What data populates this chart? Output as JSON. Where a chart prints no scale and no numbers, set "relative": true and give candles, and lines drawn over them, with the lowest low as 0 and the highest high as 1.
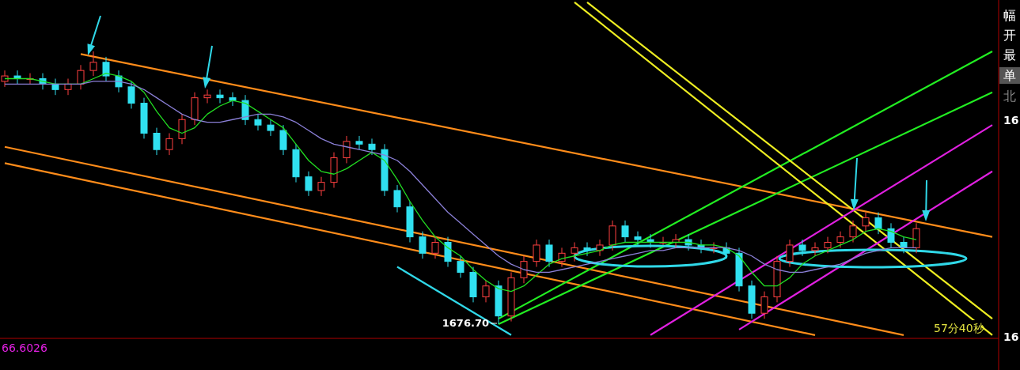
{
  "chart_data": {
    "type": "candlestick",
    "relative": true,
    "categories": [
      null,
      null,
      null,
      null,
      null,
      null,
      null,
      null,
      null,
      null,
      null,
      null,
      null,
      null,
      null,
      null,
      null,
      null,
      null,
      null,
      null,
      null,
      null,
      null,
      null,
      null,
      null,
      null,
      null,
      null,
      null,
      null,
      null,
      null,
      null,
      null,
      null,
      null,
      null,
      null,
      null,
      null,
      null,
      null,
      null,
      null,
      null,
      null,
      null,
      null,
      null,
      null,
      null,
      null,
      null,
      null,
      null,
      null,
      null,
      null,
      null,
      null,
      null,
      null,
      null,
      null,
      null,
      null,
      null,
      null,
      null,
      null,
      null,
      null,
      null,
      null,
      null,
      null,
      null
    ],
    "ohlc": [
      [
        0.89,
        0.93,
        0.87,
        0.91
      ],
      [
        0.91,
        0.93,
        0.88,
        0.9
      ],
      [
        0.9,
        0.92,
        0.88,
        0.9
      ],
      [
        0.9,
        0.92,
        0.86,
        0.88
      ],
      [
        0.88,
        0.9,
        0.84,
        0.86
      ],
      [
        0.86,
        0.9,
        0.84,
        0.88
      ],
      [
        0.88,
        0.95,
        0.86,
        0.93
      ],
      [
        0.93,
        1.0,
        0.91,
        0.96
      ],
      [
        0.96,
        0.98,
        0.89,
        0.91
      ],
      [
        0.91,
        0.93,
        0.85,
        0.87
      ],
      [
        0.87,
        0.89,
        0.79,
        0.81
      ],
      [
        0.81,
        0.83,
        0.68,
        0.7
      ],
      [
        0.7,
        0.72,
        0.62,
        0.64
      ],
      [
        0.64,
        0.7,
        0.62,
        0.68
      ],
      [
        0.68,
        0.77,
        0.66,
        0.75
      ],
      [
        0.75,
        0.85,
        0.73,
        0.83
      ],
      [
        0.83,
        0.86,
        0.81,
        0.84
      ],
      [
        0.84,
        0.86,
        0.81,
        0.83
      ],
      [
        0.83,
        0.85,
        0.8,
        0.82
      ],
      [
        0.82,
        0.84,
        0.73,
        0.75
      ],
      [
        0.75,
        0.77,
        0.71,
        0.73
      ],
      [
        0.73,
        0.75,
        0.69,
        0.71
      ],
      [
        0.71,
        0.73,
        0.62,
        0.64
      ],
      [
        0.64,
        0.66,
        0.52,
        0.54
      ],
      [
        0.54,
        0.56,
        0.47,
        0.49
      ],
      [
        0.49,
        0.54,
        0.47,
        0.52
      ],
      [
        0.52,
        0.63,
        0.5,
        0.61
      ],
      [
        0.61,
        0.69,
        0.59,
        0.67
      ],
      [
        0.67,
        0.69,
        0.64,
        0.66
      ],
      [
        0.66,
        0.68,
        0.62,
        0.64
      ],
      [
        0.64,
        0.66,
        0.47,
        0.49
      ],
      [
        0.49,
        0.51,
        0.41,
        0.43
      ],
      [
        0.43,
        0.45,
        0.3,
        0.32
      ],
      [
        0.32,
        0.34,
        0.24,
        0.26
      ],
      [
        0.26,
        0.32,
        0.24,
        0.3
      ],
      [
        0.3,
        0.32,
        0.21,
        0.23
      ],
      [
        0.23,
        0.25,
        0.17,
        0.19
      ],
      [
        0.19,
        0.21,
        0.08,
        0.1
      ],
      [
        0.1,
        0.16,
        0.08,
        0.14
      ],
      [
        0.14,
        0.16,
        0.0,
        0.03
      ],
      [
        0.03,
        0.19,
        0.01,
        0.17
      ],
      [
        0.17,
        0.25,
        0.15,
        0.23
      ],
      [
        0.23,
        0.31,
        0.21,
        0.29
      ],
      [
        0.29,
        0.31,
        0.21,
        0.23
      ],
      [
        0.23,
        0.28,
        0.21,
        0.26
      ],
      [
        0.26,
        0.3,
        0.23,
        0.28
      ],
      [
        0.28,
        0.3,
        0.25,
        0.27
      ],
      [
        0.27,
        0.31,
        0.25,
        0.29
      ],
      [
        0.29,
        0.38,
        0.27,
        0.36
      ],
      [
        0.36,
        0.38,
        0.3,
        0.32
      ],
      [
        0.32,
        0.34,
        0.29,
        0.31
      ],
      [
        0.31,
        0.33,
        0.28,
        0.3
      ],
      [
        0.3,
        0.32,
        0.29,
        0.3
      ],
      [
        0.3,
        0.33,
        0.28,
        0.31
      ],
      [
        0.31,
        0.33,
        0.27,
        0.29
      ],
      [
        0.29,
        0.31,
        0.26,
        0.28
      ],
      [
        0.28,
        0.3,
        0.26,
        0.28
      ],
      [
        0.28,
        0.3,
        0.24,
        0.26
      ],
      [
        0.26,
        0.28,
        0.12,
        0.14
      ],
      [
        0.14,
        0.16,
        0.02,
        0.04
      ],
      [
        0.04,
        0.12,
        0.02,
        0.1
      ],
      [
        0.1,
        0.25,
        0.08,
        0.23
      ],
      [
        0.23,
        0.31,
        0.21,
        0.29
      ],
      [
        0.29,
        0.31,
        0.25,
        0.27
      ],
      [
        0.27,
        0.3,
        0.25,
        0.28
      ],
      [
        0.28,
        0.32,
        0.26,
        0.3
      ],
      [
        0.3,
        0.34,
        0.28,
        0.32
      ],
      [
        0.32,
        0.38,
        0.3,
        0.36
      ],
      [
        0.36,
        0.41,
        0.34,
        0.39
      ],
      [
        0.39,
        0.41,
        0.33,
        0.35
      ],
      [
        0.35,
        0.37,
        0.28,
        0.3
      ],
      [
        0.3,
        0.32,
        0.26,
        0.28
      ],
      [
        0.28,
        0.37,
        0.26,
        0.35
      ],
      null,
      null,
      null,
      null,
      null,
      null
    ],
    "series": [
      {
        "type": "line",
        "color": "#22dd22",
        "values": [
          0.9,
          0.9,
          0.9,
          0.89,
          0.88,
          0.88,
          0.88,
          0.9,
          0.92,
          0.91,
          0.89,
          0.85,
          0.78,
          0.72,
          0.7,
          0.72,
          0.77,
          0.8,
          0.82,
          0.81,
          0.78,
          0.75,
          0.72,
          0.66,
          0.6,
          0.56,
          0.55,
          0.57,
          0.6,
          0.63,
          0.6,
          0.53,
          0.45,
          0.38,
          0.32,
          0.28,
          0.25,
          0.2,
          0.16,
          0.13,
          0.12,
          0.14,
          0.18,
          0.22,
          0.24,
          0.25,
          0.26,
          0.27,
          0.29,
          0.3,
          0.3,
          0.3,
          0.3,
          0.3,
          0.3,
          0.29,
          0.29,
          0.28,
          0.25,
          0.19,
          0.14,
          0.14,
          0.17,
          0.22,
          0.25,
          0.27,
          0.29,
          0.31,
          0.34,
          0.35,
          0.34,
          0.32,
          0.31,
          null,
          null,
          null,
          null,
          null,
          null
        ]
      },
      {
        "type": "line",
        "color": "#8a7fd6",
        "values": [
          0.88,
          0.88,
          0.88,
          0.88,
          0.88,
          0.88,
          0.88,
          0.89,
          0.89,
          0.89,
          0.88,
          0.86,
          0.83,
          0.8,
          0.77,
          0.75,
          0.74,
          0.74,
          0.75,
          0.76,
          0.77,
          0.77,
          0.76,
          0.74,
          0.71,
          0.68,
          0.66,
          0.65,
          0.64,
          0.63,
          0.62,
          0.6,
          0.56,
          0.51,
          0.46,
          0.41,
          0.37,
          0.33,
          0.29,
          0.25,
          0.22,
          0.2,
          0.19,
          0.19,
          0.2,
          0.21,
          0.22,
          0.23,
          0.24,
          0.25,
          0.26,
          0.27,
          0.27,
          0.28,
          0.28,
          0.28,
          0.28,
          0.28,
          0.27,
          0.25,
          0.22,
          0.2,
          0.19,
          0.19,
          0.2,
          0.21,
          0.22,
          0.24,
          0.26,
          0.27,
          0.28,
          0.28,
          0.28,
          null,
          null,
          null,
          null,
          null,
          null
        ]
      },
      {
        "type": "line",
        "color": "#ff8c1a",
        "values": [
          null,
          null,
          null,
          null,
          null,
          null,
          0.99,
          null,
          null,
          null,
          null,
          null,
          null,
          null,
          null,
          null,
          null,
          null,
          null,
          null,
          null,
          null,
          null,
          null,
          null,
          null,
          null,
          null,
          null,
          null,
          null,
          null,
          null,
          null,
          null,
          null,
          null,
          null,
          null,
          null,
          null,
          null,
          null,
          null,
          null,
          null,
          null,
          null,
          null,
          null,
          null,
          null,
          null,
          null,
          null,
          null,
          null,
          null,
          null,
          null,
          null,
          null,
          null,
          null,
          null,
          null,
          null,
          null,
          null,
          null,
          null,
          null,
          null,
          null,
          null,
          null,
          null,
          null,
          0.32
        ]
      },
      {
        "type": "line",
        "color": "#ff8c1a",
        "values": [
          0.65,
          null,
          null,
          null,
          null,
          null,
          null,
          null,
          null,
          null,
          null,
          null,
          null,
          null,
          null,
          null,
          null,
          null,
          null,
          null,
          null,
          null,
          null,
          null,
          null,
          null,
          null,
          null,
          null,
          null,
          null,
          null,
          null,
          null,
          null,
          null,
          null,
          null,
          null,
          null,
          null,
          null,
          null,
          null,
          null,
          null,
          null,
          null,
          null,
          null,
          null,
          null,
          null,
          null,
          null,
          null,
          null,
          null,
          null,
          null,
          null,
          null,
          null,
          null,
          null,
          null,
          null,
          null,
          null,
          null,
          null,
          -0.04,
          null,
          null,
          null,
          null,
          null,
          null,
          null
        ]
      },
      {
        "type": "line",
        "color": "#ff8c1a",
        "values": [
          0.59,
          null,
          null,
          null,
          null,
          null,
          null,
          null,
          null,
          null,
          null,
          null,
          null,
          null,
          null,
          null,
          null,
          null,
          null,
          null,
          null,
          null,
          null,
          null,
          null,
          null,
          null,
          null,
          null,
          null,
          null,
          null,
          null,
          null,
          null,
          null,
          null,
          null,
          null,
          null,
          null,
          null,
          null,
          null,
          null,
          null,
          null,
          null,
          null,
          null,
          null,
          null,
          null,
          null,
          null,
          null,
          null,
          null,
          null,
          null,
          null,
          null,
          null,
          null,
          -0.04,
          null,
          null,
          null,
          null,
          null,
          null,
          null,
          null,
          null,
          null,
          null,
          null,
          null,
          null
        ]
      },
      {
        "type": "line",
        "color": "#22ee22",
        "values": [
          null,
          null,
          null,
          null,
          null,
          null,
          null,
          null,
          null,
          null,
          null,
          null,
          null,
          null,
          null,
          null,
          null,
          null,
          null,
          null,
          null,
          null,
          null,
          null,
          null,
          null,
          null,
          null,
          null,
          null,
          null,
          null,
          null,
          null,
          null,
          null,
          null,
          null,
          null,
          0.02,
          null,
          null,
          null,
          null,
          null,
          null,
          null,
          null,
          null,
          null,
          null,
          null,
          null,
          null,
          null,
          null,
          null,
          null,
          null,
          null,
          null,
          null,
          null,
          null,
          null,
          null,
          null,
          null,
          null,
          null,
          null,
          null,
          null,
          null,
          null,
          null,
          null,
          null,
          1.0
        ]
      },
      {
        "type": "line",
        "color": "#22ee22",
        "values": [
          null,
          null,
          null,
          null,
          null,
          null,
          null,
          null,
          null,
          null,
          null,
          null,
          null,
          null,
          null,
          null,
          null,
          null,
          null,
          null,
          null,
          null,
          null,
          null,
          null,
          null,
          null,
          null,
          null,
          null,
          null,
          null,
          null,
          null,
          null,
          null,
          null,
          null,
          null,
          0,
          null,
          null,
          null,
          null,
          null,
          null,
          null,
          null,
          null,
          null,
          null,
          null,
          null,
          null,
          null,
          null,
          null,
          null,
          null,
          null,
          null,
          null,
          null,
          null,
          null,
          null,
          null,
          null,
          null,
          null,
          null,
          null,
          null,
          null,
          null,
          null,
          null,
          null,
          0.85
        ]
      },
      {
        "type": "line",
        "color": "#eeee22",
        "values": [
          null,
          null,
          null,
          null,
          null,
          null,
          null,
          null,
          null,
          null,
          null,
          null,
          null,
          null,
          null,
          null,
          null,
          null,
          null,
          null,
          null,
          null,
          null,
          null,
          null,
          null,
          null,
          null,
          null,
          null,
          null,
          null,
          null,
          null,
          null,
          null,
          null,
          null,
          null,
          null,
          null,
          null,
          null,
          null,
          null,
          1.18,
          null,
          null,
          null,
          null,
          null,
          null,
          null,
          null,
          null,
          null,
          null,
          null,
          null,
          null,
          null,
          null,
          null,
          null,
          null,
          null,
          null,
          null,
          null,
          null,
          null,
          null,
          null,
          null,
          null,
          null,
          null,
          null,
          -0.04
        ]
      },
      {
        "type": "line",
        "color": "#eeee22",
        "values": [
          null,
          null,
          null,
          null,
          null,
          null,
          null,
          null,
          null,
          null,
          null,
          null,
          null,
          null,
          null,
          null,
          null,
          null,
          null,
          null,
          null,
          null,
          null,
          null,
          null,
          null,
          null,
          null,
          null,
          null,
          null,
          null,
          null,
          null,
          null,
          null,
          null,
          null,
          null,
          null,
          null,
          null,
          null,
          null,
          null,
          null,
          1.18,
          null,
          null,
          null,
          null,
          null,
          null,
          null,
          null,
          null,
          null,
          null,
          null,
          null,
          null,
          null,
          null,
          null,
          null,
          null,
          null,
          null,
          null,
          null,
          null,
          null,
          null,
          null,
          null,
          null,
          null,
          null,
          0.02
        ]
      },
      {
        "type": "line",
        "color": "#e020e0",
        "values": [
          null,
          null,
          null,
          null,
          null,
          null,
          null,
          null,
          null,
          null,
          null,
          null,
          null,
          null,
          null,
          null,
          null,
          null,
          null,
          null,
          null,
          null,
          null,
          null,
          null,
          null,
          null,
          null,
          null,
          null,
          null,
          null,
          null,
          null,
          null,
          null,
          null,
          null,
          null,
          null,
          null,
          null,
          null,
          null,
          null,
          null,
          null,
          null,
          null,
          null,
          null,
          -0.04,
          null,
          null,
          null,
          null,
          null,
          null,
          null,
          null,
          null,
          null,
          null,
          null,
          null,
          null,
          null,
          null,
          null,
          null,
          null,
          null,
          null,
          null,
          null,
          null,
          null,
          null,
          0.73
        ]
      },
      {
        "type": "line",
        "color": "#e020e0",
        "values": [
          null,
          null,
          null,
          null,
          null,
          null,
          null,
          null,
          null,
          null,
          null,
          null,
          null,
          null,
          null,
          null,
          null,
          null,
          null,
          null,
          null,
          null,
          null,
          null,
          null,
          null,
          null,
          null,
          null,
          null,
          null,
          null,
          null,
          null,
          null,
          null,
          null,
          null,
          null,
          null,
          null,
          null,
          null,
          null,
          null,
          null,
          null,
          null,
          null,
          null,
          null,
          null,
          null,
          null,
          null,
          null,
          null,
          null,
          -0.02,
          null,
          null,
          null,
          null,
          null,
          null,
          null,
          null,
          null,
          null,
          null,
          null,
          null,
          null,
          null,
          null,
          null,
          null,
          null,
          0.56
        ]
      },
      {
        "type": "line",
        "color": "#30d8e8",
        "values": [
          null,
          null,
          null,
          null,
          null,
          null,
          null,
          null,
          null,
          null,
          null,
          null,
          null,
          null,
          null,
          null,
          null,
          null,
          null,
          null,
          null,
          null,
          null,
          null,
          null,
          null,
          null,
          null,
          null,
          null,
          null,
          0.21,
          null,
          null,
          null,
          null,
          null,
          null,
          null,
          null,
          -0.04,
          null,
          null,
          null,
          null,
          null,
          null,
          null,
          null,
          null,
          null,
          null,
          null,
          null,
          null,
          null,
          null,
          null,
          null,
          null,
          null,
          null,
          null,
          null,
          null,
          null,
          null,
          null,
          null,
          null,
          null,
          null,
          null,
          null,
          null,
          null,
          null,
          null,
          null
        ]
      }
    ],
    "annotations": [
      "1676.70",
      "57分40秒",
      "66.6026",
      "16",
      "16",
      "幅",
      "开",
      "最",
      "单",
      "北"
    ]
  }
}
